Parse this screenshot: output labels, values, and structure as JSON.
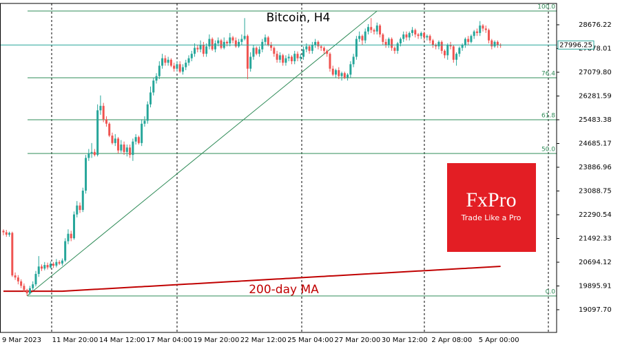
{
  "chart_data": {
    "type": "candlestick",
    "title": "Bitcoin, H4",
    "up_color": "#26a69a",
    "down_color": "#ef5350",
    "categories": [
      "9 Mar 2023",
      null,
      null,
      null,
      null,
      null,
      null,
      null,
      null,
      null,
      null,
      null,
      null,
      null,
      null,
      null,
      null,
      "11 Mar 20:00",
      null,
      null,
      null,
      null,
      null,
      null,
      null,
      null,
      null,
      null,
      null,
      null,
      null,
      null,
      null,
      "14 Mar 12:00",
      null,
      null,
      null,
      null,
      null,
      null,
      null,
      null,
      null,
      null,
      null,
      null,
      null,
      null,
      null,
      "17 Mar 04:00",
      null,
      null,
      null,
      null,
      null,
      null,
      null,
      null,
      null,
      null,
      null,
      null,
      null,
      null,
      null,
      "19 Mar 20:00",
      null,
      null,
      null,
      null,
      null,
      null,
      null,
      null,
      null,
      null,
      null,
      null,
      null,
      null,
      null,
      "22 Mar 12:00",
      null,
      null,
      null,
      null,
      null,
      null,
      null,
      null,
      null,
      null,
      null,
      null,
      null,
      null,
      null,
      "25 Mar 04:00",
      null,
      null,
      null,
      null,
      null,
      null,
      null,
      null,
      null,
      null,
      null,
      null,
      null,
      null,
      null,
      "27 Mar 20:00",
      null,
      null,
      null,
      null,
      null,
      null,
      null,
      null,
      null,
      null,
      null,
      null,
      null,
      null,
      null,
      "30 Mar 12:00",
      null,
      null,
      null,
      null,
      null,
      null,
      null,
      null,
      null,
      null,
      null,
      null,
      null,
      null,
      null,
      null,
      "2 Apr 08:00",
      null,
      null,
      null,
      null,
      null,
      null,
      null,
      null,
      null,
      null,
      null,
      null,
      null,
      null,
      null,
      "5 Apr 00:00",
      null,
      null,
      null,
      null,
      null,
      null,
      null
    ],
    "open": [
      21750,
      21700,
      21620,
      21680,
      20250,
      20180,
      20050,
      19900,
      19760,
      19650,
      19820,
      19950,
      20300,
      20550,
      20480,
      20600,
      20520,
      20640,
      20580,
      20700,
      20650,
      20750,
      21400,
      21650,
      21500,
      22300,
      22600,
      22450,
      23100,
      24200,
      24350,
      24400,
      24300,
      25800,
      25950,
      25500,
      25350,
      24950,
      24700,
      24850,
      24450,
      24650,
      24400,
      24550,
      24300,
      24750,
      24900,
      24700,
      25350,
      25450,
      26000,
      26400,
      26800,
      26950,
      27300,
      27550,
      27400,
      27500,
      27300,
      27200,
      27350,
      27100,
      27250,
      27400,
      27550,
      27700,
      27900,
      27850,
      28000,
      27700,
      27950,
      28200,
      27850,
      28050,
      28150,
      27900,
      28100,
      28050,
      28250,
      28150,
      27950,
      28100,
      28200,
      28300,
      27200,
      27600,
      27900,
      27700,
      27850,
      28100,
      28250,
      28000,
      27900,
      27700,
      27500,
      27650,
      27400,
      27550,
      27600,
      27450,
      27700,
      27550,
      27600,
      27850,
      27950,
      27800,
      28000,
      28100,
      27950,
      27900,
      27800,
      27700,
      27200,
      27000,
      27150,
      26950,
      27050,
      26900,
      27000,
      27350,
      27600,
      28200,
      28300,
      28150,
      28450,
      28600,
      28500,
      28450,
      28650,
      28350,
      28100,
      28000,
      28200,
      27900,
      27800,
      28050,
      28200,
      28350,
      28250,
      28400,
      28500,
      28350,
      28300,
      28400,
      28250,
      28300,
      28150,
      28000,
      27950,
      28100,
      27800,
      27650,
      28000,
      27950,
      27500,
      27700,
      27900,
      28000,
      28200,
      28100,
      28300,
      28450,
      28400,
      28650,
      28550,
      28500,
      28150,
      27950,
      28100,
      28000
    ],
    "high": [
      21800,
      21780,
      21720,
      21720,
      20350,
      20260,
      20120,
      19980,
      19800,
      19900,
      20050,
      20400,
      20900,
      20620,
      20700,
      20680,
      20720,
      20700,
      20800,
      20760,
      20820,
      21500,
      21800,
      21750,
      22400,
      22750,
      22700,
      23200,
      24300,
      24500,
      24700,
      24500,
      26000,
      26300,
      26050,
      25600,
      25400,
      25050,
      25000,
      24900,
      24800,
      24750,
      24650,
      24650,
      24850,
      25000,
      24950,
      25500,
      25600,
      26100,
      26600,
      26900,
      27050,
      27450,
      27700,
      27650,
      27600,
      27550,
      27400,
      27450,
      27450,
      27350,
      27500,
      27650,
      27800,
      28050,
      28000,
      28150,
      28100,
      28050,
      28350,
      28250,
      28150,
      28250,
      28200,
      28250,
      28150,
      28400,
      28300,
      28250,
      28200,
      28350,
      28900,
      28350,
      27750,
      28000,
      27950,
      27950,
      28200,
      28350,
      28300,
      28100,
      27950,
      27800,
      27750,
      27700,
      27650,
      27700,
      27650,
      27800,
      27780,
      27700,
      27950,
      28050,
      28000,
      28100,
      28200,
      28150,
      28000,
      27950,
      27850,
      27750,
      27300,
      27200,
      27250,
      27100,
      27100,
      27050,
      27450,
      27700,
      28300,
      28450,
      28350,
      28550,
      28700,
      28900,
      28550,
      28750,
      28700,
      28400,
      28200,
      28250,
      28250,
      27950,
      28100,
      28250,
      28450,
      28450,
      28450,
      28600,
      28550,
      28400,
      28450,
      28450,
      28350,
      28350,
      28200,
      28050,
      28150,
      28150,
      27850,
      28050,
      28100,
      28000,
      27750,
      27950,
      28050,
      28250,
      28300,
      28350,
      28500,
      28550,
      28800,
      28700,
      28650,
      28550,
      28200,
      28150,
      28150,
      28050
    ],
    "low": [
      21600,
      21550,
      21550,
      20200,
      20100,
      19950,
      19820,
      19700,
      19560,
      19600,
      19750,
      19880,
      20200,
      20400,
      20420,
      20450,
      20480,
      20500,
      20520,
      20600,
      20580,
      20700,
      21300,
      21400,
      21450,
      22200,
      22350,
      22380,
      23000,
      24100,
      24200,
      24250,
      24250,
      25650,
      25400,
      25250,
      24900,
      24650,
      24600,
      24350,
      24380,
      24300,
      24250,
      24200,
      24100,
      24650,
      24650,
      24600,
      25250,
      25350,
      25900,
      26300,
      26700,
      26850,
      27200,
      27300,
      27300,
      27250,
      27100,
      27100,
      27050,
      27000,
      27150,
      27300,
      27450,
      27600,
      27750,
      27750,
      27600,
      27600,
      27850,
      27800,
      27750,
      27950,
      27850,
      27850,
      27950,
      27950,
      28050,
      27900,
      27900,
      28000,
      28150,
      26850,
      27100,
      27500,
      27650,
      27600,
      27750,
      28000,
      27950,
      27800,
      27600,
      27400,
      27400,
      27300,
      27300,
      27450,
      27350,
      27350,
      27450,
      27450,
      27500,
      27750,
      27700,
      27700,
      27900,
      27850,
      27800,
      27700,
      27600,
      27100,
      26950,
      26900,
      26850,
      26800,
      26850,
      26800,
      26900,
      27250,
      27500,
      28100,
      28000,
      28050,
      28350,
      28400,
      28350,
      28350,
      28250,
      28000,
      27900,
      27900,
      27800,
      27700,
      27700,
      27950,
      28100,
      28150,
      28150,
      28300,
      28250,
      28200,
      28200,
      28150,
      28150,
      28050,
      27900,
      27850,
      27850,
      27700,
      27550,
      27500,
      27850,
      27400,
      27300,
      27600,
      27800,
      27900,
      28000,
      28050,
      28200,
      28300,
      28300,
      28450,
      28400,
      28050,
      27850,
      27900,
      27900,
      27900
    ],
    "close": [
      21700,
      21620,
      21680,
      20250,
      20180,
      20050,
      19900,
      19760,
      19650,
      19820,
      19950,
      20300,
      20550,
      20480,
      20600,
      20520,
      20640,
      20580,
      20700,
      20650,
      20750,
      21400,
      21650,
      21500,
      22300,
      22600,
      22450,
      23100,
      24200,
      24350,
      24400,
      24300,
      25800,
      25950,
      25500,
      25350,
      24950,
      24700,
      24850,
      24450,
      24650,
      24400,
      24550,
      24300,
      24750,
      24900,
      24700,
      25350,
      25450,
      26000,
      26400,
      26800,
      26950,
      27300,
      27550,
      27400,
      27500,
      27300,
      27200,
      27350,
      27100,
      27250,
      27400,
      27550,
      27700,
      27900,
      27850,
      28000,
      27700,
      27950,
      28200,
      27850,
      28050,
      28150,
      27900,
      28100,
      28050,
      28250,
      28150,
      27950,
      28100,
      28200,
      28300,
      27200,
      27600,
      27900,
      27700,
      27850,
      28100,
      28250,
      28000,
      27900,
      27700,
      27500,
      27650,
      27400,
      27550,
      27600,
      27450,
      27700,
      27550,
      27600,
      27850,
      27950,
      27800,
      28000,
      28100,
      27950,
      27900,
      27800,
      27700,
      27200,
      27000,
      27150,
      26950,
      27050,
      26900,
      27000,
      27350,
      27600,
      28200,
      28300,
      28150,
      28450,
      28600,
      28500,
      28450,
      28650,
      28350,
      28100,
      28000,
      28200,
      27900,
      27800,
      28050,
      28200,
      28350,
      28250,
      28400,
      28500,
      28350,
      28300,
      28400,
      28250,
      28300,
      28150,
      28000,
      27950,
      28100,
      27800,
      27650,
      28000,
      27950,
      27500,
      27700,
      27900,
      28000,
      28200,
      28100,
      28300,
      28450,
      28400,
      28650,
      28550,
      28500,
      28150,
      27950,
      28100,
      28000,
      27996.25
    ],
    "ma": {
      "name": "200-day MA",
      "color": "#c00000",
      "values": [
        19720,
        19720,
        19720,
        19720,
        19720,
        19720,
        19720,
        19720,
        19720,
        19720,
        19720,
        19720,
        19720,
        19720,
        19720,
        19720,
        19720,
        19720,
        19720,
        19720,
        19720,
        19726,
        19731,
        19737,
        19742,
        19748,
        19754,
        19759,
        19765,
        19770,
        19776,
        19782,
        19787,
        19793,
        19798,
        19804,
        19810,
        19815,
        19821,
        19826,
        19832,
        19838,
        19843,
        19849,
        19854,
        19860,
        19866,
        19871,
        19877,
        19882,
        19888,
        19894,
        19899,
        19905,
        19910,
        19916,
        19922,
        19927,
        19933,
        19938,
        19944,
        19950,
        19955,
        19961,
        19966,
        19972,
        19978,
        19983,
        19989,
        19994,
        20000,
        20006,
        20011,
        20017,
        20022,
        20028,
        20034,
        20039,
        20045,
        20050,
        20056,
        20062,
        20067,
        20073,
        20078,
        20084,
        20090,
        20095,
        20101,
        20106,
        20112,
        20118,
        20123,
        20129,
        20134,
        20140,
        20146,
        20151,
        20157,
        20162,
        20168,
        20174,
        20179,
        20185,
        20190,
        20196,
        20202,
        20207,
        20213,
        20218,
        20224,
        20230,
        20235,
        20241,
        20246,
        20252,
        20258,
        20263,
        20269,
        20274,
        20280,
        20286,
        20291,
        20297,
        20302,
        20308,
        20314,
        20319,
        20325,
        20330,
        20336,
        20342,
        20347,
        20353,
        20358,
        20364,
        20370,
        20375,
        20381,
        20386,
        20392,
        20398,
        20403,
        20409,
        20414,
        20420,
        20426,
        20431,
        20437,
        20442,
        20448,
        20454,
        20459,
        20465,
        20470,
        20476,
        20482,
        20487,
        20493,
        20498,
        20504,
        20510,
        20515,
        20521,
        20526,
        20532,
        20538,
        20543,
        20549,
        20554
      ]
    },
    "fibonacci": {
      "color": "#2e8b57",
      "levels": [
        {
          "price": 29139,
          "label": "100.0"
        },
        {
          "price": 26895,
          "label": "76.4"
        },
        {
          "price": 25484,
          "label": "61.8"
        },
        {
          "price": 24350,
          "label": "50.0"
        },
        {
          "price": 19560,
          "label": "0.0"
        }
      ]
    },
    "ylim": [
      18334,
      29393
    ],
    "yticks": [
      {
        "value": 19097.7,
        "label": "19097.70"
      },
      19895.91,
      20694.12,
      21492.33,
      22290.54,
      23088.75,
      23886.96,
      24685.17,
      25483.38,
      26281.59,
      {
        "value": 27079.8,
        "label": "27079.80"
      },
      27878.01,
      28676.22
    ],
    "watermark": {
      "brand": "FxPro",
      "tagline": "Trade Like a Pro",
      "color": "#e31e24"
    }
  }
}
